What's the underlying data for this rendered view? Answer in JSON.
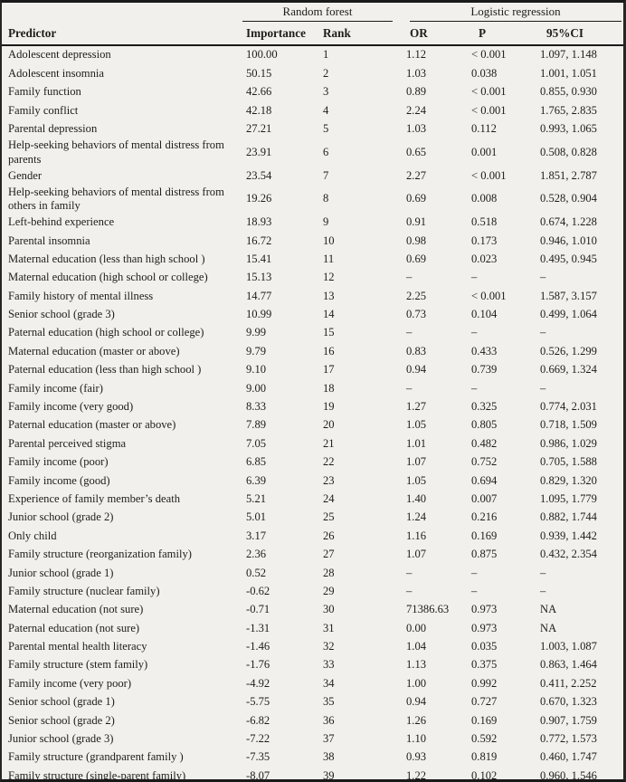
{
  "table": {
    "group_headers": [
      {
        "label": "Random forest"
      },
      {
        "label": "Logistic regression"
      }
    ],
    "columns": {
      "predictor": "Predictor",
      "importance": "Importance",
      "rank": "Rank",
      "or": "OR",
      "p": "P",
      "ci": "95%CI"
    },
    "rows": [
      [
        "Adolescent depression",
        "100.00",
        "1",
        "1.12",
        "< 0.001",
        "1.097, 1.148"
      ],
      [
        "Adolescent insomnia",
        "50.15",
        "2",
        "1.03",
        "0.038",
        "1.001, 1.051"
      ],
      [
        "Family function",
        "42.66",
        "3",
        "0.89",
        "< 0.001",
        "0.855, 0.930"
      ],
      [
        "Family conflict",
        "42.18",
        "4",
        "2.24",
        "< 0.001",
        "1.765, 2.835"
      ],
      [
        "Parental depression",
        "27.21",
        "5",
        "1.03",
        "0.112",
        "0.993, 1.065"
      ],
      [
        "Help-seeking behaviors of mental distress from parents",
        "23.91",
        "6",
        "0.65",
        "0.001",
        "0.508, 0.828"
      ],
      [
        "Gender",
        "23.54",
        "7",
        "2.27",
        "< 0.001",
        "1.851, 2.787"
      ],
      [
        "Help-seeking behaviors of mental distress from others in family",
        "19.26",
        "8",
        "0.69",
        "0.008",
        "0.528, 0.904"
      ],
      [
        "Left-behind experience",
        "18.93",
        "9",
        "0.91",
        "0.518",
        "0.674, 1.228"
      ],
      [
        "Parental insomnia",
        "16.72",
        "10",
        "0.98",
        "0.173",
        "0.946, 1.010"
      ],
      [
        "Maternal education (less than high school )",
        "15.41",
        "11",
        "0.69",
        "0.023",
        "0.495, 0.945"
      ],
      [
        "Maternal education (high school or college)",
        "15.13",
        "12",
        "–",
        "–",
        "–"
      ],
      [
        "Family history of mental illness",
        "14.77",
        "13",
        "2.25",
        "< 0.001",
        "1.587, 3.157"
      ],
      [
        "Senior school (grade 3)",
        "10.99",
        "14",
        "0.73",
        "0.104",
        "0.499, 1.064"
      ],
      [
        "Paternal education (high school or college)",
        "9.99",
        "15",
        "–",
        "–",
        "–"
      ],
      [
        "Maternal education (master or above)",
        "9.79",
        "16",
        "0.83",
        "0.433",
        "0.526, 1.299"
      ],
      [
        "Paternal education (less than high school )",
        "9.10",
        "17",
        "0.94",
        "0.739",
        "0.669, 1.324"
      ],
      [
        "Family income (fair)",
        "9.00",
        "18",
        "–",
        "–",
        "–"
      ],
      [
        "Family income (very good)",
        "8.33",
        "19",
        "1.27",
        "0.325",
        "0.774, 2.031"
      ],
      [
        "Paternal education (master or above)",
        "7.89",
        "20",
        "1.05",
        "0.805",
        "0.718, 1.509"
      ],
      [
        "Parental perceived stigma",
        "7.05",
        "21",
        "1.01",
        "0.482",
        "0.986, 1.029"
      ],
      [
        "Family income (poor)",
        "6.85",
        "22",
        "1.07",
        "0.752",
        "0.705, 1.588"
      ],
      [
        "Family income (good)",
        "6.39",
        "23",
        "1.05",
        "0.694",
        "0.829, 1.320"
      ],
      [
        "Experience of family member’s death",
        "5.21",
        "24",
        "1.40",
        "0.007",
        "1.095, 1.779"
      ],
      [
        "Junior school (grade 2)",
        "5.01",
        "25",
        "1.24",
        "0.216",
        "0.882, 1.744"
      ],
      [
        "Only child",
        "3.17",
        "26",
        "1.16",
        "0.169",
        "0.939, 1.442"
      ],
      [
        "Family structure (reorganization family)",
        "2.36",
        "27",
        "1.07",
        "0.875",
        "0.432, 2.354"
      ],
      [
        "Junior school (grade 1)",
        "0.52",
        "28",
        "–",
        "–",
        "–"
      ],
      [
        "Family structure (nuclear family)",
        "-0.62",
        "29",
        "–",
        "–",
        "–"
      ],
      [
        "Maternal education (not sure)",
        "-0.71",
        "30",
        "71386.63",
        "0.973",
        "NA"
      ],
      [
        "Paternal education (not sure)",
        "-1.31",
        "31",
        "0.00",
        "0.973",
        "NA"
      ],
      [
        "Parental mental health literacy",
        "-1.46",
        "32",
        "1.04",
        "0.035",
        "1.003, 1.087"
      ],
      [
        "Family structure (stem family)",
        "-1.76",
        "33",
        "1.13",
        "0.375",
        "0.863, 1.464"
      ],
      [
        "Family income (very poor)",
        "-4.92",
        "34",
        "1.00",
        "0.992",
        "0.411, 2.252"
      ],
      [
        "Senior school (grade 1)",
        "-5.75",
        "35",
        "0.94",
        "0.727",
        "0.670, 1.323"
      ],
      [
        "Senior school (grade 2)",
        "-6.82",
        "36",
        "1.26",
        "0.169",
        "0.907, 1.759"
      ],
      [
        "Junior school (grade 3)",
        "-7.22",
        "37",
        "1.10",
        "0.592",
        "0.772, 1.573"
      ],
      [
        "Family structure (grandparent family )",
        "-7.35",
        "38",
        "0.93",
        "0.819",
        "0.460, 1.747"
      ],
      [
        "Family structure (single-parent family)",
        "-8.07",
        "39",
        "1.22",
        "0.102",
        "0.960, 1.546"
      ]
    ]
  }
}
